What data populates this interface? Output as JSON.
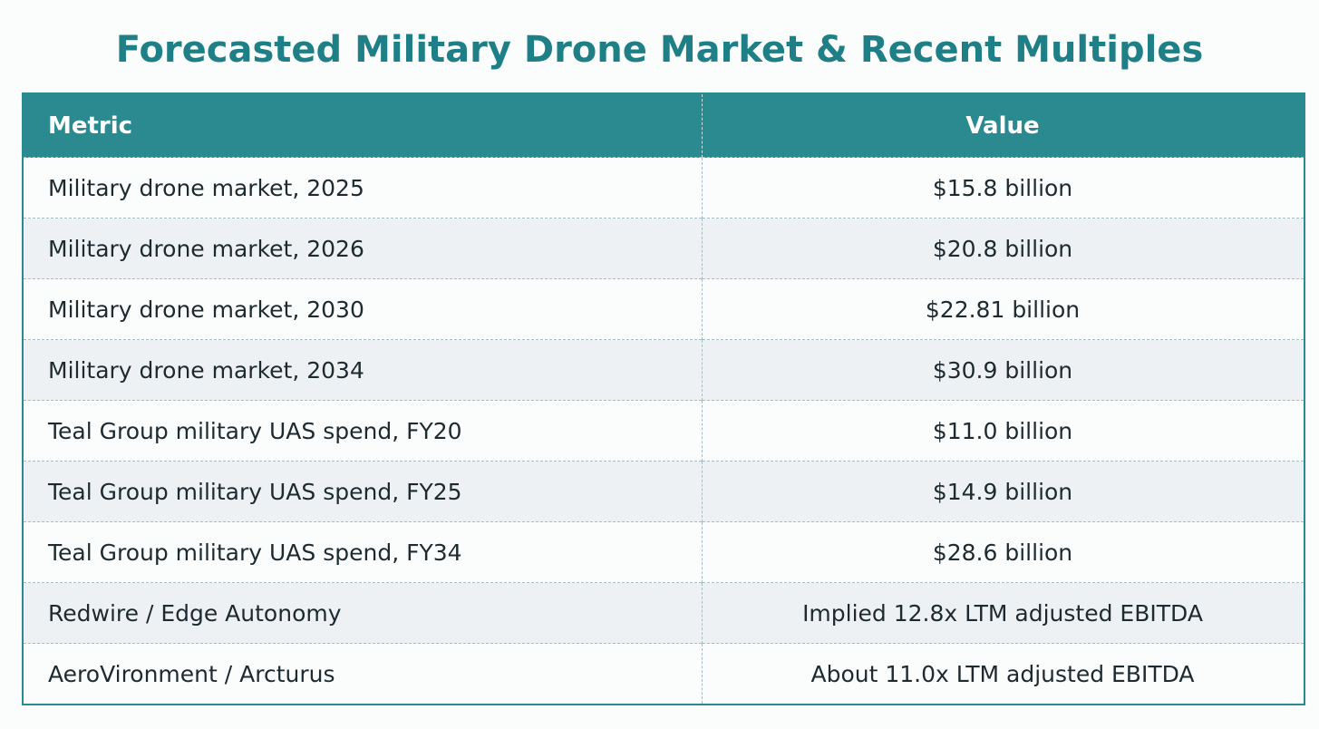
{
  "title": "Forecasted Military Drone Market & Recent Multiples",
  "table": {
    "header": [
      "Metric",
      "Value"
    ],
    "rows": [
      [
        "Military drone market, 2025",
        "$15.8 billion"
      ],
      [
        "Military drone market, 2026",
        "$20.8 billion"
      ],
      [
        "Military drone market, 2030",
        "$22.81 billion"
      ],
      [
        "Military drone market, 2034",
        "$30.9 billion"
      ],
      [
        "Teal Group military UAS spend, FY20",
        "$11.0 billion"
      ],
      [
        "Teal Group military UAS spend, FY25",
        "$14.9 billion"
      ],
      [
        "Teal Group military UAS spend, FY34",
        "$28.6 billion"
      ],
      [
        "Redwire / Edge Autonomy",
        "Implied 12.8x LTM adjusted EBITDA"
      ],
      [
        "AeroVironment / Arcturus",
        "About 11.0x LTM adjusted EBITDA"
      ]
    ]
  }
}
